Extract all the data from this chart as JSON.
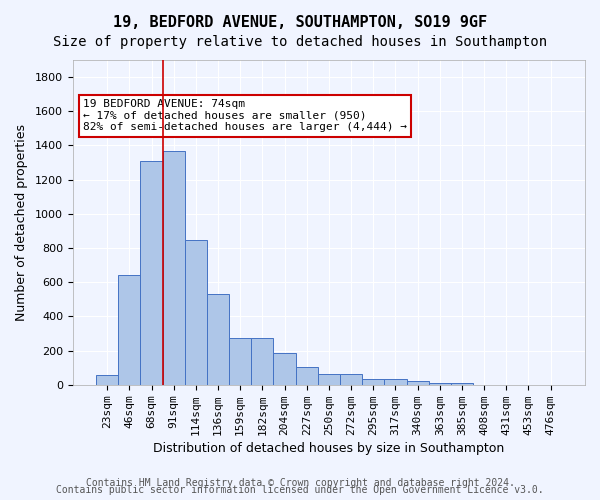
{
  "title1": "19, BEDFORD AVENUE, SOUTHAMPTON, SO19 9GF",
  "title2": "Size of property relative to detached houses in Southampton",
  "xlabel": "Distribution of detached houses by size in Southampton",
  "ylabel": "Number of detached properties",
  "categories": [
    "23sqm",
    "46sqm",
    "68sqm",
    "91sqm",
    "114sqm",
    "136sqm",
    "159sqm",
    "182sqm",
    "204sqm",
    "227sqm",
    "250sqm",
    "272sqm",
    "295sqm",
    "317sqm",
    "340sqm",
    "363sqm",
    "385sqm",
    "408sqm",
    "431sqm",
    "453sqm",
    "476sqm"
  ],
  "values": [
    55,
    645,
    1310,
    1370,
    845,
    530,
    275,
    275,
    185,
    105,
    65,
    65,
    35,
    35,
    20,
    10,
    10,
    0,
    0,
    0,
    0
  ],
  "bar_color": "#aec6e8",
  "bar_edge_color": "#4472c4",
  "background_color": "#f0f4ff",
  "grid_color": "#ffffff",
  "vline_x": 2.5,
  "vline_color": "#cc0000",
  "annotation_text": "19 BEDFORD AVENUE: 74sqm\n← 17% of detached houses are smaller (950)\n82% of semi-detached houses are larger (4,444) →",
  "annotation_box_color": "#ffffff",
  "annotation_box_edge": "#cc0000",
  "ylim": [
    0,
    1900
  ],
  "yticks": [
    0,
    200,
    400,
    600,
    800,
    1000,
    1200,
    1400,
    1600,
    1800
  ],
  "footer1": "Contains HM Land Registry data © Crown copyright and database right 2024.",
  "footer2": "Contains public sector information licensed under the Open Government Licence v3.0.",
  "title1_fontsize": 11,
  "title2_fontsize": 10,
  "axis_label_fontsize": 9,
  "tick_fontsize": 8,
  "annotation_fontsize": 8,
  "footer_fontsize": 7
}
